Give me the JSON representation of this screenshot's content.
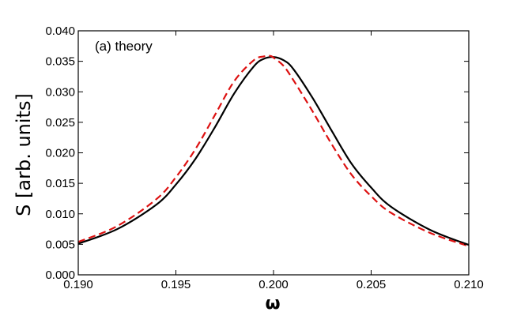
{
  "chart_data": {
    "type": "line",
    "annotation": "(a) theory",
    "xlabel": "ω",
    "ylabel": "S [arb. units]",
    "xlim": [
      0.19,
      0.21
    ],
    "ylim": [
      0.0,
      0.04
    ],
    "x_ticks": [
      "0.190",
      "0.195",
      "0.200",
      "0.205",
      "0.210"
    ],
    "y_ticks": [
      "0.000",
      "0.005",
      "0.010",
      "0.015",
      "0.020",
      "0.025",
      "0.030",
      "0.035",
      "0.040"
    ],
    "legend": "none",
    "grid": false,
    "series": [
      {
        "style": "solid",
        "color": "#000000",
        "x": [
          0.19,
          0.192,
          0.194,
          0.195,
          0.196,
          0.197,
          0.198,
          0.199,
          0.1995,
          0.2,
          0.2005,
          0.201,
          0.202,
          0.203,
          0.204,
          0.205,
          0.206,
          0.208,
          0.21
        ],
        "y": [
          0.0051,
          0.0075,
          0.0115,
          0.0148,
          0.019,
          0.0242,
          0.0298,
          0.0342,
          0.0354,
          0.0357,
          0.0352,
          0.0338,
          0.029,
          0.0235,
          0.0182,
          0.0143,
          0.0112,
          0.0074,
          0.0049
        ]
      },
      {
        "style": "dashed",
        "color": "#dd1111",
        "x": [
          0.19,
          0.192,
          0.194,
          0.195,
          0.196,
          0.197,
          0.198,
          0.199,
          0.1995,
          0.1998,
          0.2,
          0.2005,
          0.201,
          0.202,
          0.203,
          0.204,
          0.205,
          0.206,
          0.208,
          0.21
        ],
        "y": [
          0.0054,
          0.008,
          0.0124,
          0.016,
          0.0206,
          0.0262,
          0.0318,
          0.0352,
          0.0358,
          0.0359,
          0.0356,
          0.0343,
          0.032,
          0.0268,
          0.0213,
          0.0164,
          0.0129,
          0.0102,
          0.0069,
          0.0047
        ]
      }
    ]
  }
}
